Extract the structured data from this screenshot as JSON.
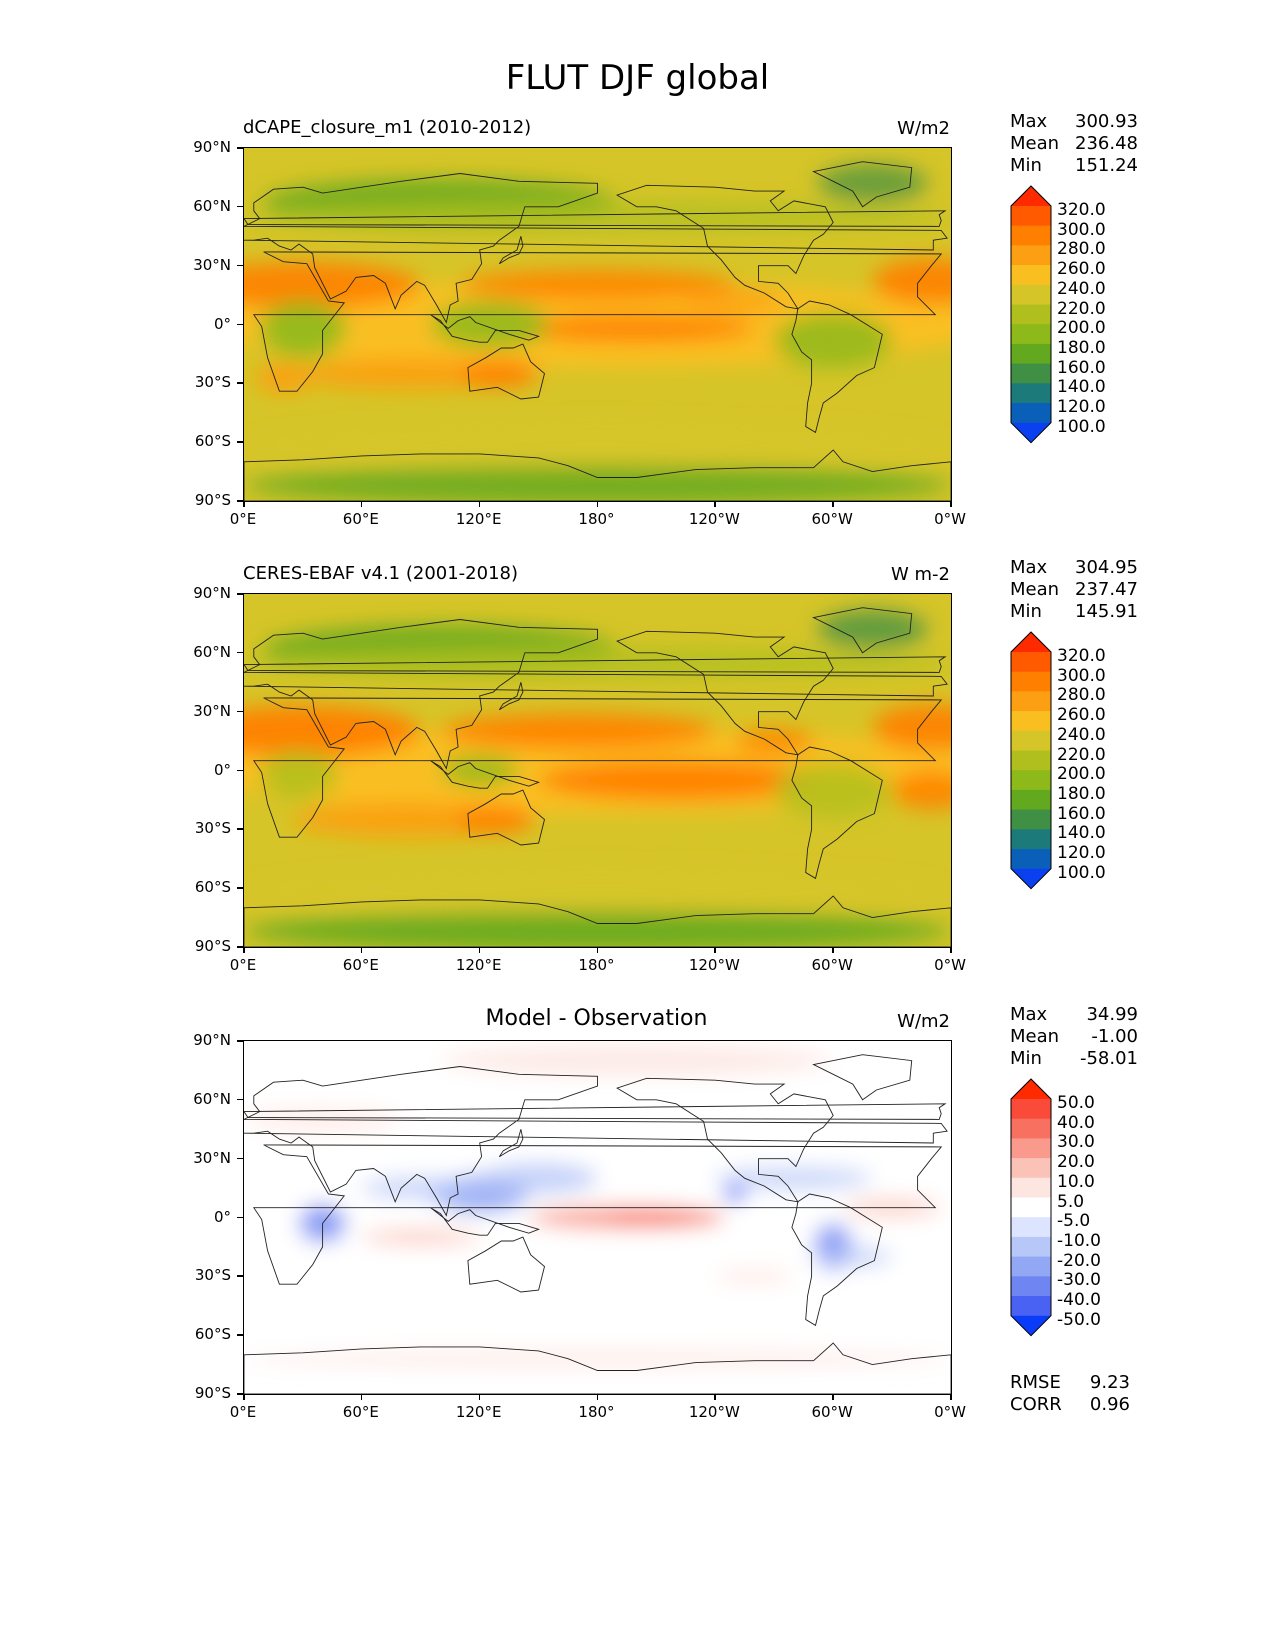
{
  "figure_title": "FLUT DJF global",
  "lat_ticks": [
    "90°N",
    "60°N",
    "30°N",
    "0°",
    "30°S",
    "60°S",
    "90°S"
  ],
  "lon_ticks": [
    "0°E",
    "60°E",
    "120°E",
    "180°",
    "120°W",
    "60°W",
    "0°W"
  ],
  "panels": [
    {
      "label": "dCAPE_closure_m1 (2010-2012)",
      "title": "",
      "units": "W/m2",
      "stats": [
        [
          "Max",
          "300.93"
        ],
        [
          "Mean",
          "236.48"
        ],
        [
          "Min",
          "151.24"
        ]
      ],
      "levels": [
        "320.0",
        "300.0",
        "280.0",
        "260.0",
        "240.0",
        "220.0",
        "200.0",
        "180.0",
        "160.0",
        "140.0",
        "120.0",
        "100.0"
      ],
      "colors": [
        "#ff2a00",
        "#ff5a00",
        "#ff8000",
        "#fd9f12",
        "#f9bf20",
        "#d6c529",
        "#b1bf1e",
        "#8db91a",
        "#63a91f",
        "#3f8f45",
        "#1d7a7b",
        "#0a5fb9",
        "#0a40f0"
      ]
    },
    {
      "label": "CERES-EBAF v4.1 (2001-2018)",
      "title": "",
      "units": "W m-2",
      "stats": [
        [
          "Max",
          "304.95"
        ],
        [
          "Mean",
          "237.47"
        ],
        [
          "Min",
          "145.91"
        ]
      ],
      "levels": [
        "320.0",
        "300.0",
        "280.0",
        "260.0",
        "240.0",
        "220.0",
        "200.0",
        "180.0",
        "160.0",
        "140.0",
        "120.0",
        "100.0"
      ],
      "colors": [
        "#ff2a00",
        "#ff5a00",
        "#ff8000",
        "#fd9f12",
        "#f9bf20",
        "#d6c529",
        "#b1bf1e",
        "#8db91a",
        "#63a91f",
        "#3f8f45",
        "#1d7a7b",
        "#0a5fb9",
        "#0a40f0"
      ]
    },
    {
      "label": "",
      "title": "Model - Observation",
      "units": "W/m2",
      "stats": [
        [
          "Max",
          "34.99"
        ],
        [
          "Mean",
          "-1.00"
        ],
        [
          "Min",
          "-58.01"
        ]
      ],
      "extra_stats": [
        [
          "RMSE",
          "9.23"
        ],
        [
          "CORR",
          "0.96"
        ]
      ],
      "levels": [
        "50.0",
        "40.0",
        "30.0",
        "20.0",
        "10.0",
        "5.0",
        "-5.0",
        "-10.0",
        "-20.0",
        "-30.0",
        "-40.0",
        "-50.0"
      ],
      "colors": [
        "#ff2a00",
        "#fa4a3a",
        "#f77060",
        "#f99a8c",
        "#fbc3b8",
        "#fde5e0",
        "#ffffff",
        "#dce4ff",
        "#b7c7f8",
        "#93a8f5",
        "#6f86f2",
        "#4a62f3",
        "#0a3cf8"
      ]
    }
  ],
  "chart_data": {
    "type": "heatmap",
    "variable": "FLUT",
    "season": "DJF",
    "region": "global",
    "panels": [
      {
        "name": "dCAPE_closure_m1 (2010-2012)",
        "units": "W/m2",
        "max": 300.93,
        "mean": 236.48,
        "min": 151.24
      },
      {
        "name": "CERES-EBAF v4.1 (2001-2018)",
        "units": "W m-2",
        "max": 304.95,
        "mean": 237.47,
        "min": 145.91
      },
      {
        "name": "Model - Observation",
        "units": "W/m2",
        "max": 34.99,
        "mean": -1.0,
        "min": -58.01,
        "rmse": 9.23,
        "corr": 0.96
      }
    ],
    "x_range": [
      0,
      360
    ],
    "y_range": [
      -90,
      90
    ]
  }
}
